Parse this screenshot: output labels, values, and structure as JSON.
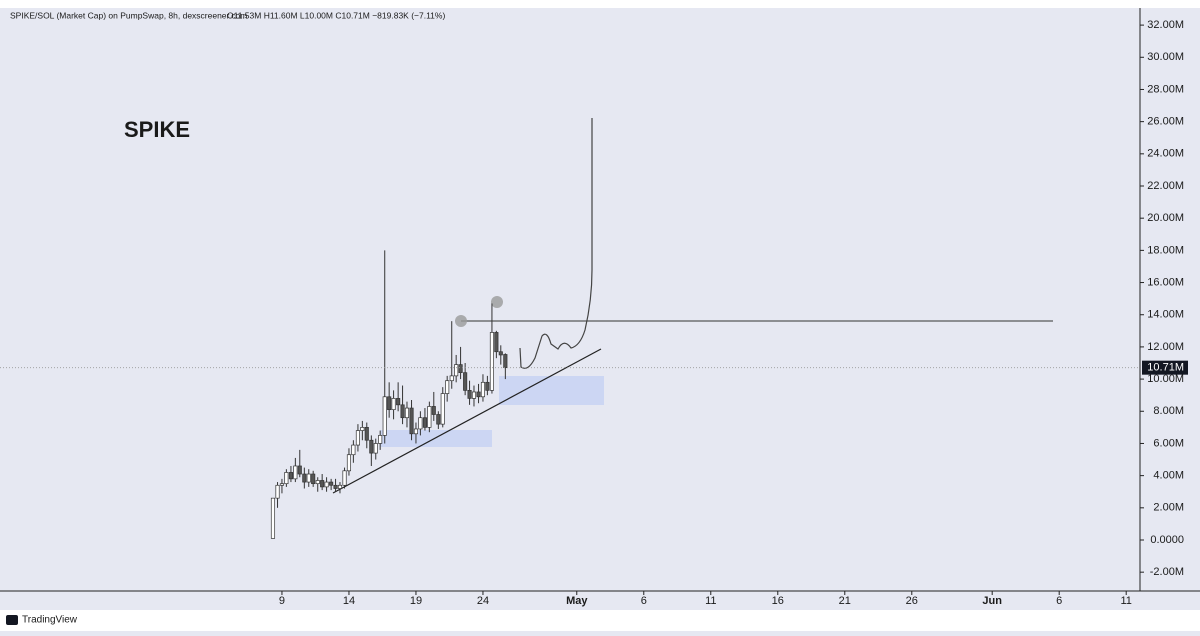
{
  "chart_data": {
    "type": "candlestick",
    "title": "SPIKE/SOL (Market Cap) on PumpSwap, 8h, dexscreener.com",
    "subtitle": "O11.53M H11.60M L10.00M C10.71M −819.83K (−7.11%)",
    "annotation": "SPIKE",
    "last_price_label": "10.71M",
    "footer": "TradingView",
    "up_color": "#ffffff",
    "down_color": "#555555",
    "edge_color": "#333333",
    "x": [
      8.33,
      8.67,
      9.0,
      9.33,
      9.67,
      10.0,
      10.33,
      10.67,
      11.0,
      11.33,
      11.67,
      12.0,
      12.33,
      12.67,
      13.0,
      13.33,
      13.67,
      14.0,
      14.33,
      14.67,
      15.0,
      15.33,
      15.67,
      16.0,
      16.33,
      16.67,
      17.0,
      17.33,
      17.67,
      18.0,
      18.33,
      18.67,
      19.0,
      19.33,
      19.67,
      20.0,
      20.33,
      20.67,
      21.0,
      21.33,
      21.67,
      22.0,
      22.33,
      22.67,
      23.0,
      23.33,
      23.67,
      24.0,
      24.33,
      24.67,
      25.0,
      25.33,
      25.67
    ],
    "open": [
      0.1,
      2.6,
      3.4,
      3.5,
      4.2,
      3.8,
      4.6,
      4.1,
      3.6,
      4.1,
      3.5,
      3.7,
      3.3,
      3.6,
      3.4,
      3.2,
      3.4,
      4.3,
      5.3,
      5.9,
      6.8,
      7.0,
      6.2,
      5.4,
      6.0,
      6.5,
      8.9,
      8.1,
      8.8,
      8.4,
      7.6,
      8.2,
      6.6,
      6.9,
      7.6,
      7.0,
      8.3,
      7.8,
      7.2,
      9.1,
      9.9,
      10.2,
      10.9,
      10.4,
      9.3,
      8.8,
      9.2,
      8.9,
      9.8,
      9.3,
      12.9,
      11.7,
      11.53
    ],
    "high": [
      2.6,
      3.6,
      3.8,
      4.4,
      4.6,
      5.1,
      5.6,
      4.5,
      4.4,
      4.3,
      3.9,
      4.1,
      3.9,
      3.8,
      3.8,
      3.6,
      4.5,
      5.7,
      6.2,
      7.2,
      7.4,
      7.3,
      6.5,
      6.3,
      6.8,
      18.0,
      9.8,
      9.3,
      9.8,
      9.6,
      8.6,
      8.7,
      7.3,
      8.0,
      8.2,
      8.6,
      9.2,
      8.0,
      9.5,
      10.2,
      13.6,
      11.5,
      12.0,
      11.0,
      9.9,
      9.6,
      9.7,
      10.3,
      10.2,
      14.7,
      13.0,
      12.1,
      11.6
    ],
    "low": [
      0.1,
      2.0,
      2.9,
      3.3,
      3.6,
      3.6,
      3.9,
      3.2,
      3.3,
      3.3,
      3.0,
      3.1,
      3.0,
      3.1,
      3.0,
      2.9,
      3.2,
      4.0,
      4.8,
      5.5,
      6.2,
      5.7,
      4.6,
      5.0,
      5.6,
      6.0,
      7.6,
      7.5,
      8.0,
      7.2,
      7.0,
      6.2,
      6.0,
      6.5,
      6.8,
      6.7,
      7.4,
      6.9,
      7.0,
      8.6,
      9.4,
      9.8,
      10.0,
      9.0,
      8.4,
      8.3,
      8.5,
      8.6,
      9.0,
      9.1,
      11.3,
      10.9,
      10.0
    ],
    "close": [
      2.6,
      3.4,
      3.5,
      4.2,
      3.8,
      4.6,
      4.1,
      3.6,
      4.1,
      3.5,
      3.7,
      3.3,
      3.6,
      3.4,
      3.2,
      3.4,
      4.3,
      5.3,
      5.9,
      6.8,
      7.0,
      6.2,
      5.4,
      6.0,
      6.5,
      8.9,
      8.1,
      8.8,
      8.4,
      7.6,
      8.2,
      6.6,
      6.9,
      7.6,
      7.0,
      8.3,
      7.8,
      7.2,
      9.1,
      9.9,
      10.2,
      10.9,
      10.4,
      9.3,
      8.8,
      9.2,
      8.9,
      9.8,
      9.3,
      12.9,
      11.7,
      11.5,
      10.71
    ],
    "xlim": [
      -12.04,
      73.03
    ],
    "xticks": [
      {
        "value": 9,
        "label": "9"
      },
      {
        "value": 14,
        "label": "14"
      },
      {
        "value": 19,
        "label": "19"
      },
      {
        "value": 24,
        "label": "24"
      },
      {
        "value": 31,
        "label": "May"
      },
      {
        "value": 36,
        "label": "6"
      },
      {
        "value": 41,
        "label": "11"
      },
      {
        "value": 46,
        "label": "16"
      },
      {
        "value": 51,
        "label": "21"
      },
      {
        "value": 56,
        "label": "26"
      },
      {
        "value": 62,
        "label": "Jun"
      },
      {
        "value": 67,
        "label": "6"
      },
      {
        "value": 72,
        "label": "11"
      }
    ],
    "ylim": [
      -3.17,
      33.56
    ],
    "yticks": [
      {
        "value": 32,
        "label": "32.00M"
      },
      {
        "value": 30,
        "label": "30.00M"
      },
      {
        "value": 28,
        "label": "28.00M"
      },
      {
        "value": 26,
        "label": "26.00M"
      },
      {
        "value": 24,
        "label": "24.00M"
      },
      {
        "value": 22,
        "label": "22.00M"
      },
      {
        "value": 20,
        "label": "20.00M"
      },
      {
        "value": 18,
        "label": "18.00M"
      },
      {
        "value": 16,
        "label": "16.00M"
      },
      {
        "value": 14,
        "label": "14.00M"
      },
      {
        "value": 12,
        "label": "12.00M"
      },
      {
        "value": 10,
        "label": "10.00M"
      },
      {
        "value": 8,
        "label": "8.00M"
      },
      {
        "value": 6,
        "label": "6.00M"
      },
      {
        "value": 4,
        "label": "4.00M"
      },
      {
        "value": 2,
        "label": "2.00M"
      },
      {
        "value": 0,
        "label": "0.0000"
      },
      {
        "value": -2,
        "label": "-2.00M"
      }
    ]
  }
}
